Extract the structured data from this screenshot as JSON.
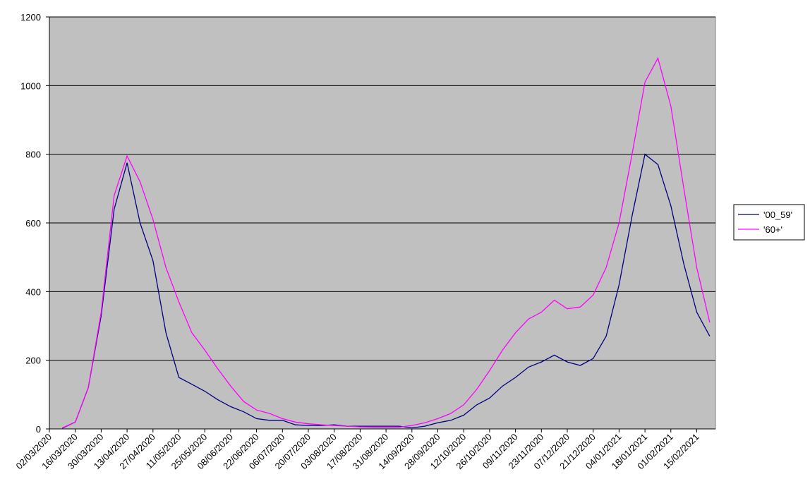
{
  "chart_data": {
    "type": "line",
    "categories": [
      "02/03/2020",
      null,
      "16/03/2020",
      null,
      "30/03/2020",
      null,
      "13/04/2020",
      null,
      "27/04/2020",
      null,
      "11/05/2020",
      null,
      "25/05/2020",
      null,
      "08/06/2020",
      null,
      "22/06/2020",
      null,
      "06/07/2020",
      null,
      "20/07/2020",
      null,
      "03/08/2020",
      null,
      "17/08/2020",
      null,
      "31/08/2020",
      null,
      "14/09/2020",
      null,
      "28/09/2020",
      null,
      "12/10/2020",
      null,
      "26/10/2020",
      null,
      "09/11/2020",
      null,
      "23/11/2020",
      null,
      "07/12/2020",
      null,
      "21/12/2020",
      null,
      "04/01/2021",
      null,
      "18/01/2021",
      null,
      "01/02/2021",
      null,
      "15/02/2021",
      null
    ],
    "series": [
      {
        "name": "'00_59'",
        "color": "#000080",
        "values": [
          null,
          2,
          20,
          120,
          330,
          640,
          775,
          600,
          490,
          280,
          150,
          130,
          110,
          85,
          65,
          50,
          30,
          25,
          25,
          12,
          10,
          10,
          12,
          8,
          8,
          8,
          8,
          8,
          3,
          8,
          18,
          25,
          40,
          70,
          90,
          125,
          150,
          180,
          195,
          215,
          195,
          185,
          205,
          270,
          420,
          620,
          800,
          770,
          650,
          480,
          340,
          270
        ]
      },
      {
        "name": "'60+'",
        "color": "#ff00ff",
        "values": [
          null,
          3,
          20,
          120,
          340,
          680,
          795,
          720,
          610,
          470,
          370,
          280,
          230,
          175,
          125,
          80,
          55,
          45,
          30,
          20,
          15,
          12,
          10,
          8,
          6,
          5,
          5,
          5,
          10,
          18,
          30,
          45,
          70,
          115,
          170,
          230,
          280,
          320,
          340,
          375,
          350,
          355,
          390,
          470,
          600,
          800,
          1010,
          1080,
          940,
          700,
          470,
          310
        ]
      }
    ],
    "ylim": [
      0,
      1200
    ],
    "yticks": [
      0,
      200,
      400,
      600,
      800,
      1000,
      1200
    ],
    "grid": true,
    "legend": "right"
  }
}
